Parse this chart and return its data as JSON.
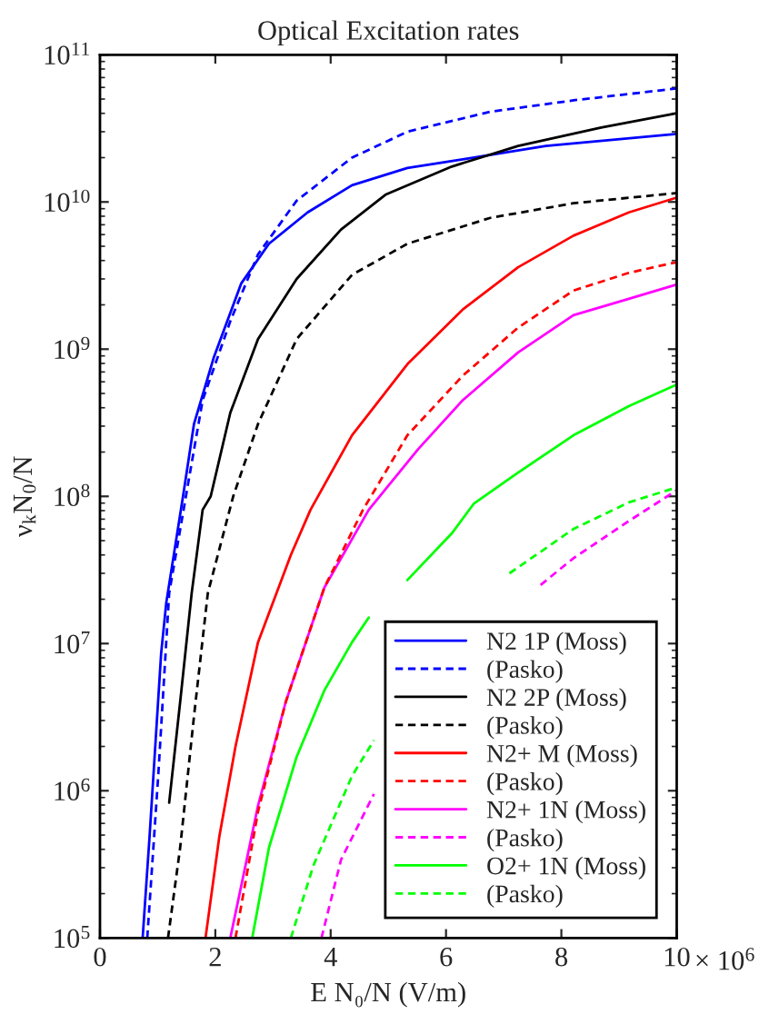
{
  "chart_data": {
    "type": "line",
    "title": "Optical Excitation rates",
    "xlabel": "E N₀/N (V/m)",
    "ylabel": "ν$_{k}$N$_{0}$/N",
    "log": "y",
    "grid": false,
    "legend": "bottom right",
    "marker": "none",
    "annotations": [
      "× 10$^{6}$"
    ],
    "xlim": [
      0,
      10
    ],
    "xticks": [
      0,
      2,
      4,
      6,
      8,
      10
    ],
    "ylim": [
      100000.0,
      100000000000.0
    ],
    "yticks": [
      {
        "value": 100000.0,
        "label": "10$^{5}$"
      },
      {
        "value": 1000000.0,
        "label": "10$^{6}$"
      },
      {
        "value": 10000000.0,
        "label": "10$^{7}$"
      },
      {
        "value": 100000000.0,
        "label": "10$^{8}$"
      },
      {
        "value": 1000000000.0,
        "label": "10$^{9}$"
      },
      {
        "value": 10000000000.0,
        "label": "10$^{10}$"
      },
      {
        "value": 100000000000.0,
        "label": "10$^{11}$"
      }
    ],
    "series": [
      {
        "name": "N2 1P (Moss)",
        "color": "#0000ff",
        "line_style": "solid",
        "x": [
          0.74,
          0.86,
          1.06,
          1.15,
          1.44,
          1.63,
          1.97,
          2.45,
          2.93,
          3.6,
          4.37,
          5.33,
          6.29,
          7.73,
          10
        ],
        "values": [
          100000.0,
          490000.0,
          8500000.0,
          19000000.0,
          100000000.0,
          310000000.0,
          870000000.0,
          2800000000.0,
          5200000000.0,
          8500000000.0,
          13000000000.0,
          17000000000.0,
          19500000000.0,
          24000000000.0,
          29000000000.0
        ]
      },
      {
        "name": "(Pasko)",
        "color": "#0000ff",
        "line_style": "dashed",
        "x": [
          0.82,
          1.01,
          1.2,
          1.49,
          1.78,
          2.26,
          2.74,
          3.41,
          4.37,
          5.33,
          6.77,
          8.21,
          10
        ],
        "values": [
          100000.0,
          1260000.0,
          22000000.0,
          100000000.0,
          450000000.0,
          1550000000.0,
          4400000000.0,
          10200000000.0,
          20000000000.0,
          30000000000.0,
          41000000000.0,
          49000000000.0,
          59000000000.0
        ]
      },
      {
        "name": "N2 2P (Moss)",
        "color": "#000000",
        "line_style": "solid",
        "x": [
          1.2,
          1.39,
          1.59,
          1.78,
          1.92,
          2.26,
          2.74,
          3.41,
          4.18,
          4.95,
          6.1,
          7.25,
          8.69,
          10
        ],
        "values": [
          830000.0,
          4000000.0,
          22000000.0,
          81000000.0,
          100000000.0,
          370000000.0,
          1170000000.0,
          3000000000.0,
          6500000000.0,
          11200000000.0,
          17400000000.0,
          24000000000.0,
          32000000000.0,
          40000000000.0
        ]
      },
      {
        "name": "(Pasko)",
        "color": "#000000",
        "line_style": "dashed",
        "x": [
          1.18,
          1.39,
          1.63,
          1.87,
          2.31,
          2.74,
          3.41,
          4.37,
          5.33,
          6.77,
          8.21,
          10
        ],
        "values": [
          100000.0,
          410000.0,
          3200000.0,
          22000000.0,
          100000000.0,
          310000000.0,
          1170000000.0,
          3200000000.0,
          5200000000.0,
          7800000000.0,
          9800000000.0,
          11500000000.0
        ]
      },
      {
        "name": "N2+ M (Moss)",
        "color": "#ff0000",
        "line_style": "solid",
        "x": [
          1.83,
          2.07,
          2.35,
          2.74,
          3.31,
          3.65,
          4.37,
          5.33,
          6.29,
          7.25,
          8.21,
          9.17,
          10
        ],
        "values": [
          100000.0,
          490000.0,
          2000000.0,
          10200000.0,
          40000000.0,
          81000000.0,
          260000000.0,
          790000000.0,
          1860000000.0,
          3600000000.0,
          5900000000.0,
          8500000000.0,
          10700000000.0
        ]
      },
      {
        "name": "(Pasko)",
        "color": "#ff0000",
        "line_style": "dashed",
        "x": [
          2.35,
          2.74,
          3.22,
          3.89,
          4.56,
          5.33,
          6.29,
          7.25,
          8.21,
          9.17,
          10
        ],
        "values": [
          100000.0,
          720000.0,
          4000000.0,
          24000000.0,
          81000000.0,
          260000000.0,
          660000000.0,
          1400000000.0,
          2500000000.0,
          3300000000.0,
          3900000000.0
        ]
      },
      {
        "name": "N2+ 1N (Moss)",
        "color": "#ff00ff",
        "line_style": "solid",
        "x": [
          2.26,
          2.74,
          3.22,
          3.89,
          4.66,
          5.52,
          6.29,
          7.25,
          8.21,
          9.17,
          10
        ],
        "values": [
          100000.0,
          790000.0,
          4000000.0,
          24000000.0,
          81000000.0,
          210000000.0,
          450000000.0,
          950000000.0,
          1700000000.0,
          2200000000.0,
          2750000000.0
        ]
      },
      {
        "name": "(Pasko)",
        "color": "#ff00ff",
        "line_style": "dashed",
        "x": [
          3.84,
          4.18,
          4.75,
          6,
          7.64,
          8.21,
          9.17,
          10
        ],
        "values": [
          100000.0,
          340000.0,
          950000.0,
          null,
          25000000.0,
          38000000.0,
          68000000.0,
          110000000.0
        ]
      },
      {
        "name": "O2+ 1N (Moss)",
        "color": "#00ff00",
        "line_style": "solid",
        "x": [
          2.64,
          2.93,
          3.41,
          3.89,
          4.37,
          4.66,
          5,
          5.33,
          6.1,
          6.48,
          7.25,
          8.21,
          9.17,
          10
        ],
        "values": [
          100000.0,
          410000.0,
          1700000.0,
          4800000.0,
          10200000.0,
          15000000.0,
          null,
          27000000.0,
          56000000.0,
          89000000.0,
          145000000.0,
          260000000.0,
          410000000.0,
          575000000.0
        ]
      },
      {
        "name": "(Pasko)",
        "color": "#00ff00",
        "line_style": "dashed",
        "x": [
          3.31,
          3.7,
          4.37,
          4.75,
          6,
          7.1,
          8.21,
          9.17,
          10
        ],
        "values": [
          100000.0,
          310000.0,
          1260000.0,
          2200000.0,
          null,
          30000000.0,
          60000000.0,
          91000000.0,
          115000000.0
        ]
      }
    ]
  }
}
